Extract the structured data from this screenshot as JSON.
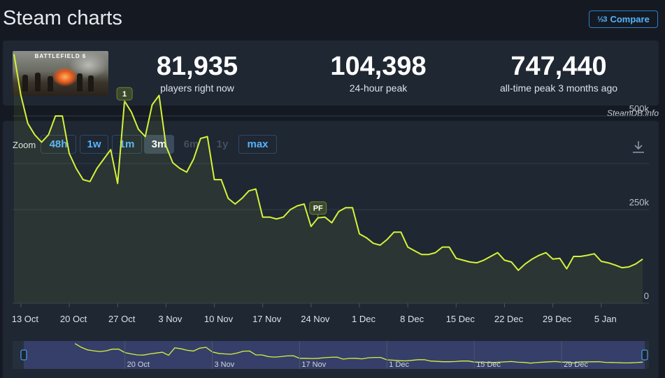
{
  "page": {
    "title": "Steam charts"
  },
  "compare": {
    "icon": "½3",
    "label": "Compare"
  },
  "game": {
    "thumbnail_label": "BATTLEFIELD 6"
  },
  "stats": [
    {
      "value": "81,935",
      "label": "players right now"
    },
    {
      "value": "104,398",
      "label": "24-hour peak"
    },
    {
      "value": "747,440",
      "label": "all-time peak 3 months ago"
    }
  ],
  "credit": "SteamDB.info",
  "zoom": {
    "label": "Zoom",
    "options": [
      {
        "label": "48h",
        "state": "enabled"
      },
      {
        "label": "1w",
        "state": "enabled"
      },
      {
        "label": "1m",
        "state": "enabled"
      },
      {
        "label": "3m",
        "state": "active"
      },
      {
        "label": "6m",
        "state": "disabled"
      },
      {
        "label": "1y",
        "state": "disabled"
      },
      {
        "label": "max",
        "state": "enabled"
      }
    ]
  },
  "icons": {
    "download": "download-icon",
    "compare": "compare-icon"
  },
  "colors": {
    "line": "#d5f23a",
    "accent": "#55b3ff",
    "marker_bg": "#3c4a2b"
  },
  "chart_data": {
    "type": "line",
    "xlabel": "",
    "ylabel": "",
    "yticks": [
      "0",
      "250k",
      "500k"
    ],
    "ylim": [
      0,
      700000
    ],
    "x_tick_labels": [
      "13 Oct",
      "20 Oct",
      "27 Oct",
      "3 Nov",
      "10 Nov",
      "17 Nov",
      "24 Nov",
      "1 Dec",
      "8 Dec",
      "15 Dec",
      "22 Dec",
      "29 Dec",
      "5 Jan"
    ],
    "annotations": [
      {
        "label": "1",
        "date": "28 Oct",
        "value": 535000
      },
      {
        "label": "PF",
        "date": "25 Nov",
        "value": 230000
      }
    ],
    "series": [
      {
        "values": [
          [
            "12 Oct",
            665000
          ],
          [
            "13 Oct",
            555000
          ],
          [
            "14 Oct",
            480000
          ],
          [
            "15 Oct",
            450000
          ],
          [
            "16 Oct",
            430000
          ],
          [
            "17 Oct",
            450000
          ],
          [
            "18 Oct",
            500000
          ],
          [
            "19 Oct",
            500000
          ],
          [
            "20 Oct",
            400000
          ],
          [
            "21 Oct",
            360000
          ],
          [
            "22 Oct",
            330000
          ],
          [
            "23 Oct",
            325000
          ],
          [
            "24 Oct",
            360000
          ],
          [
            "25 Oct",
            385000
          ],
          [
            "26 Oct",
            410000
          ],
          [
            "27 Oct",
            320000
          ],
          [
            "28 Oct",
            540000
          ],
          [
            "29 Oct",
            510000
          ],
          [
            "30 Oct",
            465000
          ],
          [
            "31 Oct",
            445000
          ],
          [
            "1 Nov",
            530000
          ],
          [
            "2 Nov",
            555000
          ],
          [
            "3 Nov",
            420000
          ],
          [
            "4 Nov",
            375000
          ],
          [
            "5 Nov",
            360000
          ],
          [
            "6 Nov",
            350000
          ],
          [
            "7 Nov",
            385000
          ],
          [
            "8 Nov",
            440000
          ],
          [
            "9 Nov",
            445000
          ],
          [
            "10 Nov",
            330000
          ],
          [
            "11 Nov",
            330000
          ],
          [
            "12 Nov",
            280000
          ],
          [
            "13 Nov",
            265000
          ],
          [
            "14 Nov",
            280000
          ],
          [
            "15 Nov",
            300000
          ],
          [
            "16 Nov",
            305000
          ],
          [
            "17 Nov",
            230000
          ],
          [
            "18 Nov",
            230000
          ],
          [
            "19 Nov",
            225000
          ],
          [
            "20 Nov",
            230000
          ],
          [
            "21 Nov",
            250000
          ],
          [
            "22 Nov",
            260000
          ],
          [
            "23 Nov",
            265000
          ],
          [
            "24 Nov",
            205000
          ],
          [
            "25 Nov",
            228000
          ],
          [
            "26 Nov",
            230000
          ],
          [
            "27 Nov",
            215000
          ],
          [
            "28 Nov",
            245000
          ],
          [
            "29 Nov",
            255000
          ],
          [
            "30 Nov",
            255000
          ],
          [
            "1 Dec",
            185000
          ],
          [
            "2 Dec",
            175000
          ],
          [
            "3 Dec",
            160000
          ],
          [
            "4 Dec",
            155000
          ],
          [
            "5 Dec",
            170000
          ],
          [
            "6 Dec",
            190000
          ],
          [
            "7 Dec",
            190000
          ],
          [
            "8 Dec",
            150000
          ],
          [
            "9 Dec",
            140000
          ],
          [
            "10 Dec",
            130000
          ],
          [
            "11 Dec",
            130000
          ],
          [
            "12 Dec",
            135000
          ],
          [
            "13 Dec",
            150000
          ],
          [
            "14 Dec",
            150000
          ],
          [
            "15 Dec",
            120000
          ],
          [
            "16 Dec",
            115000
          ],
          [
            "17 Dec",
            110000
          ],
          [
            "18 Dec",
            108000
          ],
          [
            "19 Dec",
            115000
          ],
          [
            "20 Dec",
            125000
          ],
          [
            "21 Dec",
            135000
          ],
          [
            "22 Dec",
            115000
          ],
          [
            "23 Dec",
            110000
          ],
          [
            "24 Dec",
            88000
          ],
          [
            "25 Dec",
            105000
          ],
          [
            "26 Dec",
            118000
          ],
          [
            "27 Dec",
            128000
          ],
          [
            "28 Dec",
            135000
          ],
          [
            "29 Dec",
            118000
          ],
          [
            "30 Dec",
            120000
          ],
          [
            "31 Dec",
            92000
          ],
          [
            "1 Jan",
            125000
          ],
          [
            "2 Jan",
            125000
          ],
          [
            "3 Jan",
            128000
          ],
          [
            "4 Jan",
            132000
          ],
          [
            "5 Jan",
            112000
          ],
          [
            "6 Jan",
            108000
          ],
          [
            "7 Jan",
            102000
          ],
          [
            "8 Jan",
            95000
          ],
          [
            "9 Jan",
            97000
          ],
          [
            "10 Jan",
            105000
          ],
          [
            "11 Jan",
            118000
          ]
        ]
      }
    ],
    "navigator": {
      "x_tick_labels": [
        "20 Oct",
        "3 Nov",
        "17 Nov",
        "1 Dec",
        "15 Dec",
        "29 Dec"
      ]
    }
  }
}
